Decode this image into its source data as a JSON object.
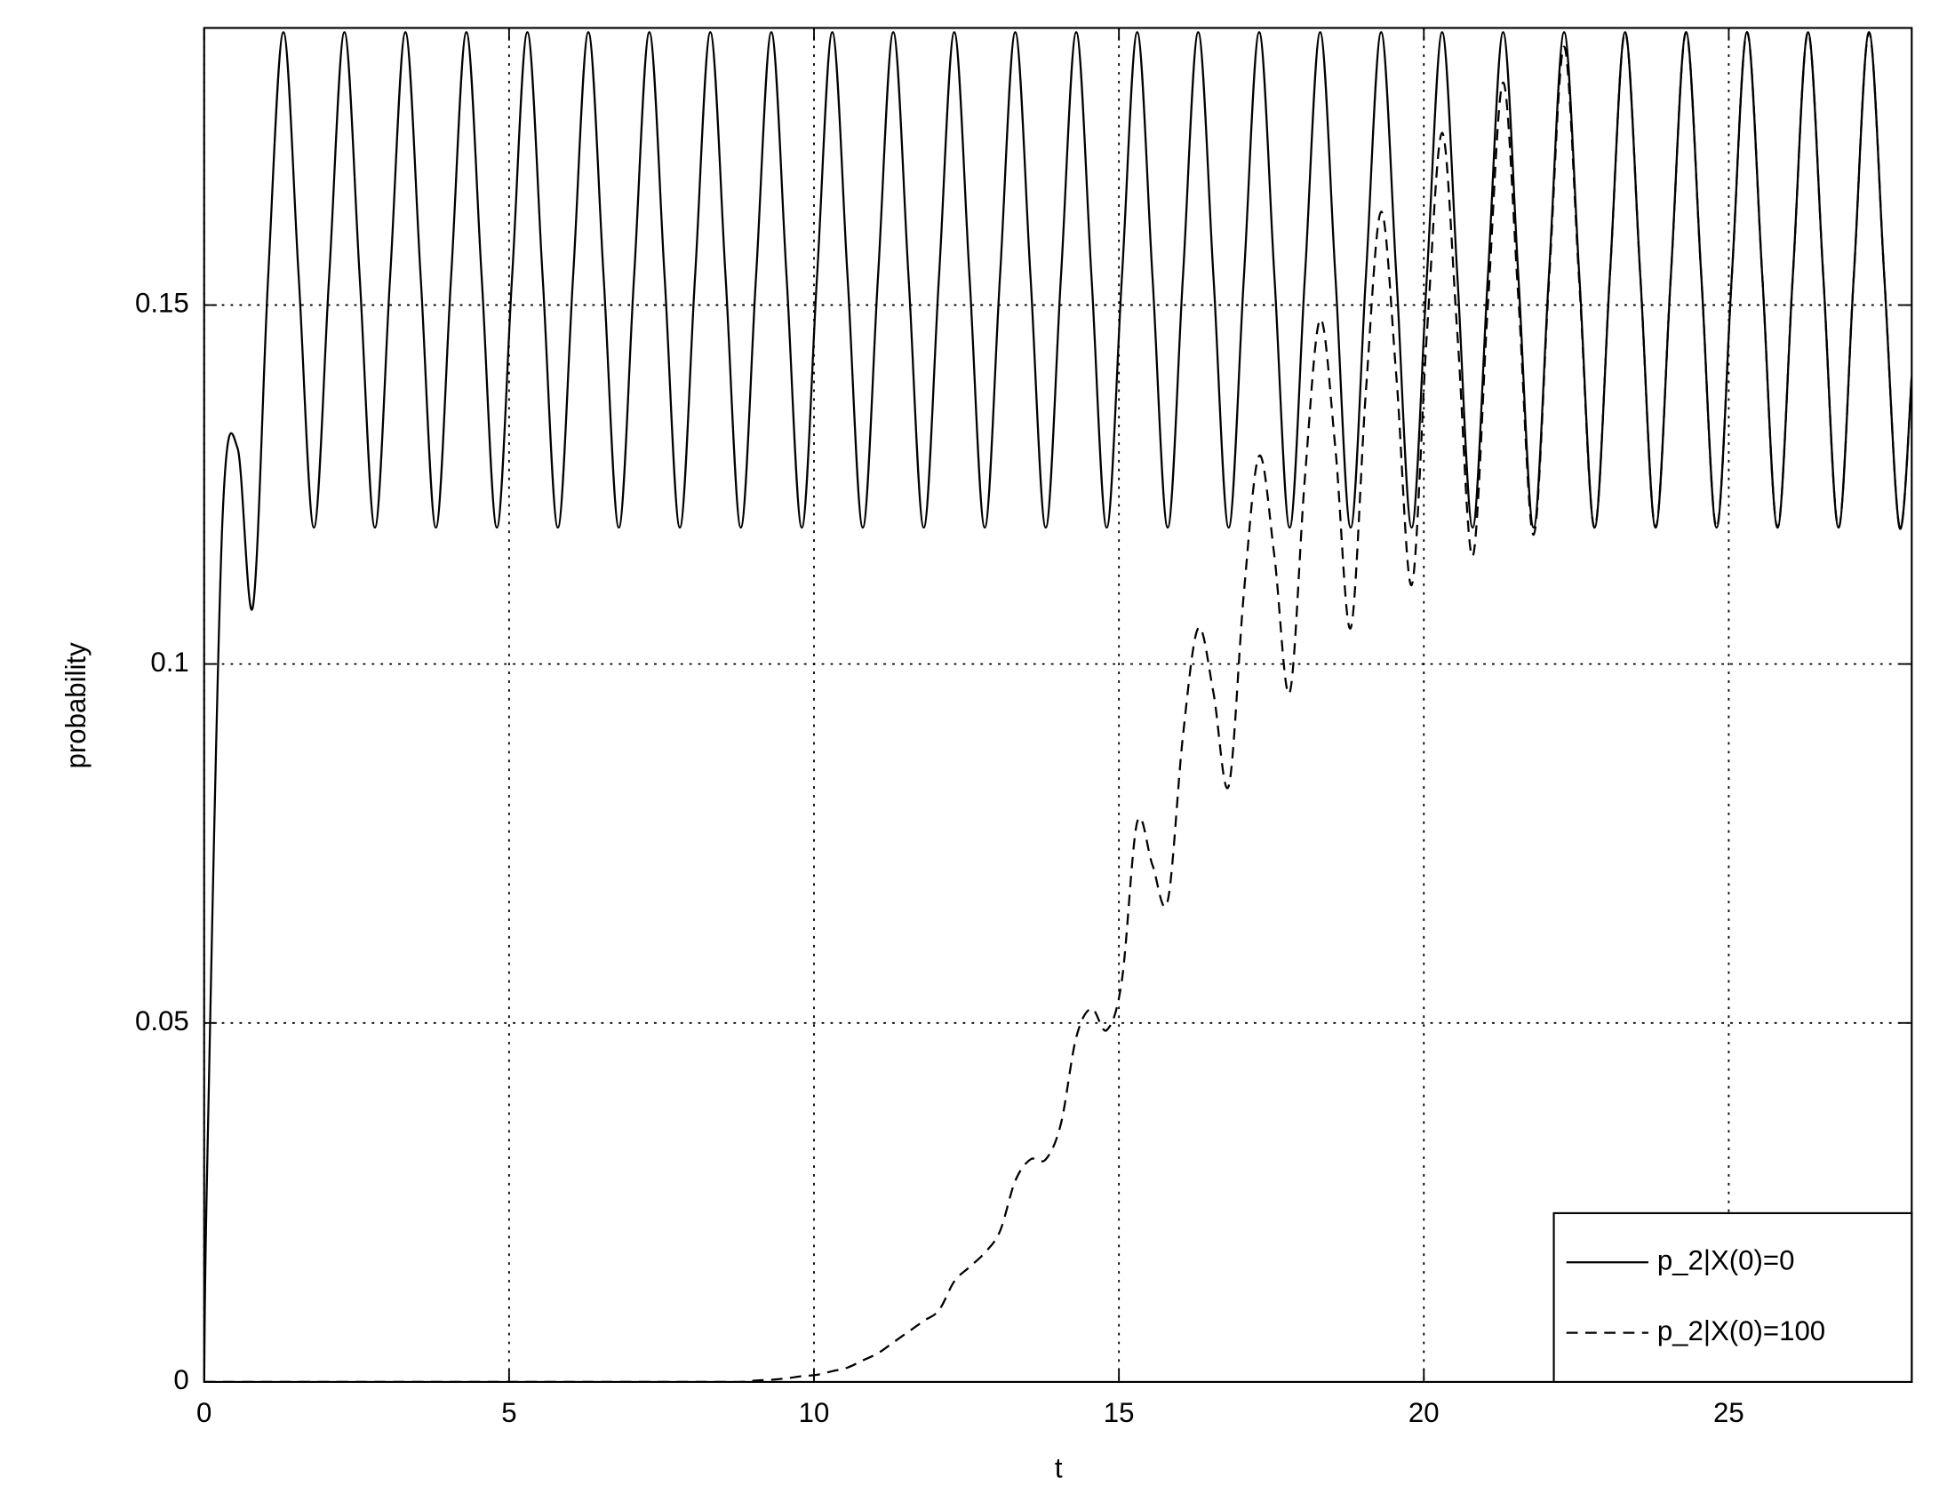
{
  "chart_data": {
    "type": "line",
    "xlabel": "t",
    "ylabel": "probability",
    "x": [
      0,
      0.05,
      0.3,
      0.55,
      0.8,
      1.05,
      1.3,
      1.55,
      1.8,
      2.05,
      2.3,
      2.55,
      2.8,
      3.05,
      3.3,
      3.55,
      3.8,
      4.05,
      4.3,
      4.55,
      4.8,
      5.05,
      5.3,
      5.55,
      5.8,
      6.05,
      6.3,
      6.55,
      6.8,
      7.05,
      7.3,
      7.55,
      7.8,
      8.05,
      8.3,
      8.55,
      8.8,
      9.05,
      9.3,
      9.55,
      9.8,
      10.05,
      10.3,
      10.55,
      10.8,
      11.05,
      11.3,
      11.55,
      11.8,
      12.05,
      12.3,
      12.55,
      12.8,
      13.05,
      13.3,
      13.55,
      13.8,
      14.05,
      14.3,
      14.55,
      14.8,
      15.05,
      15.3,
      15.55,
      15.8,
      16.05,
      16.3,
      16.55,
      16.8,
      17.05,
      17.3,
      17.55,
      17.8,
      18.05,
      18.3,
      18.55,
      18.8,
      19.05,
      19.3,
      19.55,
      19.8,
      20.05,
      20.3,
      20.55,
      20.8,
      21.05,
      21.3,
      21.55,
      21.8,
      22.05,
      22.3,
      22.55,
      22.8,
      23.05,
      23.3,
      23.55,
      23.8,
      24.05,
      24.3,
      24.55,
      24.8,
      25.05,
      25.3,
      25.55,
      25.8,
      26.05,
      26.3,
      26.55,
      26.8,
      27.05,
      27.3,
      27.55,
      27.8,
      28
    ],
    "series": [
      {
        "name": "p_2|X(0)=0",
        "color": "#000000",
        "dash": "solid",
        "values": [
          0,
          0.03,
          0.12,
          0.13,
          0.108,
          0.154,
          0.188,
          0.154,
          0.119,
          0.154,
          0.188,
          0.154,
          0.119,
          0.154,
          0.188,
          0.154,
          0.119,
          0.154,
          0.188,
          0.154,
          0.119,
          0.154,
          0.188,
          0.154,
          0.119,
          0.154,
          0.188,
          0.154,
          0.119,
          0.154,
          0.188,
          0.154,
          0.119,
          0.154,
          0.188,
          0.154,
          0.119,
          0.154,
          0.188,
          0.154,
          0.119,
          0.154,
          0.188,
          0.154,
          0.119,
          0.154,
          0.188,
          0.154,
          0.119,
          0.154,
          0.188,
          0.154,
          0.119,
          0.154,
          0.188,
          0.154,
          0.119,
          0.154,
          0.188,
          0.154,
          0.119,
          0.154,
          0.188,
          0.154,
          0.119,
          0.154,
          0.188,
          0.154,
          0.119,
          0.154,
          0.188,
          0.154,
          0.119,
          0.154,
          0.188,
          0.154,
          0.119,
          0.154,
          0.188,
          0.154,
          0.119,
          0.154,
          0.188,
          0.154,
          0.119,
          0.154,
          0.188,
          0.154,
          0.119,
          0.154,
          0.188,
          0.154,
          0.119,
          0.154,
          0.188,
          0.154,
          0.119,
          0.154,
          0.188,
          0.154,
          0.119,
          0.154,
          0.188,
          0.154,
          0.119,
          0.154,
          0.188,
          0.154,
          0.119,
          0.154,
          0.188,
          0.154,
          0.119,
          0.14
        ]
      },
      {
        "name": "p_2|X(0)=100",
        "color": "#000000",
        "dash": "dashed",
        "values": [
          0,
          0,
          0,
          0,
          0,
          0,
          0,
          0,
          0,
          0,
          0,
          0,
          0,
          0,
          0,
          0,
          0,
          0,
          0,
          0,
          0,
          0,
          0,
          0,
          0,
          0,
          0,
          0,
          0,
          0,
          0,
          0,
          0,
          0,
          0,
          0,
          0,
          0.0002,
          0.0003,
          0.0005,
          0.0008,
          0.001,
          0.0015,
          0.002,
          0.003,
          0.004,
          0.0055,
          0.007,
          0.0085,
          0.01,
          0.014,
          0.016,
          0.018,
          0.021,
          0.028,
          0.031,
          0.031,
          0.036,
          0.048,
          0.052,
          0.049,
          0.056,
          0.078,
          0.072,
          0.067,
          0.09,
          0.105,
          0.096,
          0.083,
          0.11,
          0.129,
          0.115,
          0.096,
          0.126,
          0.148,
          0.13,
          0.105,
          0.138,
          0.163,
          0.14,
          0.111,
          0.146,
          0.174,
          0.146,
          0.115,
          0.15,
          0.181,
          0.151,
          0.118,
          0.153,
          0.186,
          0.153,
          0.119,
          0.154,
          0.188,
          0.154,
          0.119,
          0.154,
          0.188,
          0.154,
          0.119,
          0.154,
          0.188,
          0.154,
          0.119,
          0.154,
          0.188,
          0.154,
          0.119,
          0.154,
          0.188,
          0.154,
          0.119,
          0.14
        ]
      }
    ],
    "xlim": [
      0,
      28
    ],
    "xticks": [
      0,
      5,
      10,
      15,
      20,
      25
    ],
    "ylim": [
      0,
      0.1886
    ],
    "yticks": [
      0,
      0.05,
      0.1,
      0.15
    ],
    "grid": true,
    "legend": "lower right"
  }
}
